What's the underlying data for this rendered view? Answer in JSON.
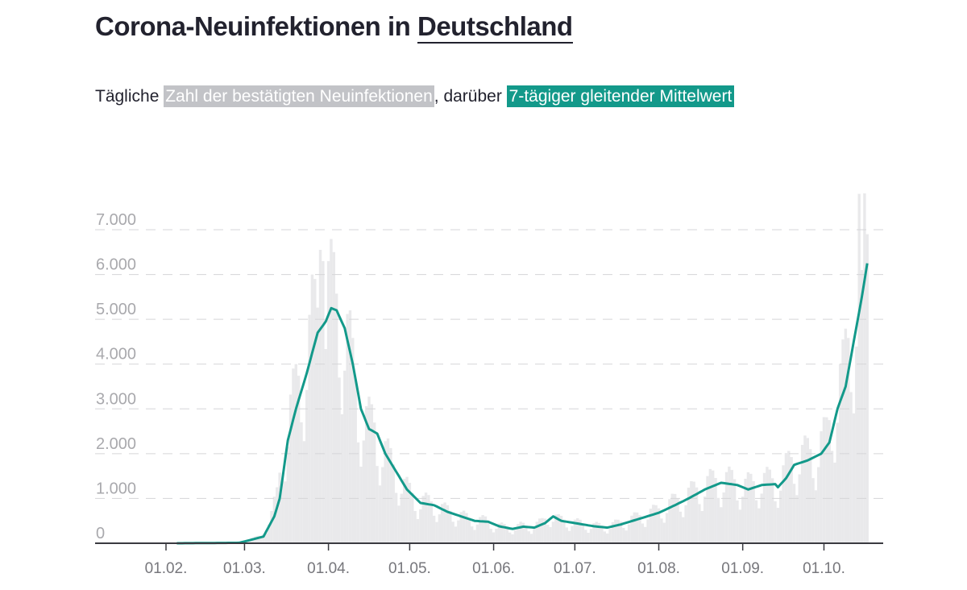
{
  "header": {
    "title_prefix": "Corona-Neuinfektionen in ",
    "title_link": "Deutschland",
    "subtitle_1": "Tägliche ",
    "subtitle_highlight_grey": "Zahl der bestätigten Neuinfektionen",
    "subtitle_2": ", darüber ",
    "subtitle_highlight_green": "7-tägiger gleitender Mittelwert"
  },
  "colors": {
    "bars": "#e9e9eb",
    "line": "#13998a",
    "grid": "#d5d5d8",
    "axis": "#3a3a40"
  },
  "chart_data": {
    "type": "bar+line",
    "title": "Corona-Neuinfektionen in Deutschland",
    "xlabel": "",
    "ylabel": "",
    "ylim": [
      0,
      7800
    ],
    "x_start": "2020-02-01",
    "x_end_day": 260,
    "yticks": [
      {
        "value": 0,
        "label": "0"
      },
      {
        "value": 1000,
        "label": "1.000"
      },
      {
        "value": 2000,
        "label": "2.000"
      },
      {
        "value": 3000,
        "label": "3.000"
      },
      {
        "value": 4000,
        "label": "4.000"
      },
      {
        "value": 5000,
        "label": "5.000"
      },
      {
        "value": 6000,
        "label": "6.000"
      },
      {
        "value": 7000,
        "label": "7.000"
      }
    ],
    "xticks": [
      {
        "day": 0,
        "label": "01.02."
      },
      {
        "day": 29,
        "label": "01.03."
      },
      {
        "day": 60,
        "label": "01.04."
      },
      {
        "day": 90,
        "label": "01.05."
      },
      {
        "day": 121,
        "label": "01.06."
      },
      {
        "day": 151,
        "label": "01.07."
      },
      {
        "day": 182,
        "label": "01.08."
      },
      {
        "day": 213,
        "label": "01.09."
      },
      {
        "day": 243,
        "label": "01.10."
      }
    ],
    "grid": true,
    "series": [
      {
        "name": "7-tägiger gleitender Mittelwert",
        "kind": "line",
        "points_day_value": [
          [
            4,
            0
          ],
          [
            27,
            10
          ],
          [
            31,
            70
          ],
          [
            36,
            150
          ],
          [
            40,
            600
          ],
          [
            42,
            1000
          ],
          [
            45,
            2300
          ],
          [
            48,
            3000
          ],
          [
            52,
            3800
          ],
          [
            56,
            4700
          ],
          [
            59,
            4950
          ],
          [
            61,
            5250
          ],
          [
            63,
            5200
          ],
          [
            66,
            4800
          ],
          [
            69,
            4000
          ],
          [
            72,
            3000
          ],
          [
            75,
            2550
          ],
          [
            78,
            2450
          ],
          [
            81,
            2000
          ],
          [
            85,
            1600
          ],
          [
            89,
            1200
          ],
          [
            94,
            900
          ],
          [
            99,
            850
          ],
          [
            104,
            700
          ],
          [
            109,
            600
          ],
          [
            114,
            500
          ],
          [
            119,
            480
          ],
          [
            123,
            380
          ],
          [
            128,
            320
          ],
          [
            132,
            370
          ],
          [
            136,
            350
          ],
          [
            140,
            450
          ],
          [
            143,
            600
          ],
          [
            146,
            500
          ],
          [
            151,
            450
          ],
          [
            158,
            380
          ],
          [
            163,
            350
          ],
          [
            168,
            420
          ],
          [
            175,
            550
          ],
          [
            182,
            680
          ],
          [
            188,
            850
          ],
          [
            193,
            1000
          ],
          [
            199,
            1200
          ],
          [
            205,
            1350
          ],
          [
            211,
            1300
          ],
          [
            215,
            1200
          ],
          [
            220,
            1300
          ],
          [
            225,
            1320
          ],
          [
            226,
            1250
          ],
          [
            229,
            1450
          ],
          [
            232,
            1750
          ],
          [
            237,
            1850
          ],
          [
            242,
            2000
          ],
          [
            245,
            2250
          ],
          [
            248,
            3000
          ],
          [
            251,
            3500
          ],
          [
            254,
            4500
          ],
          [
            257,
            5500
          ],
          [
            259,
            6250
          ]
        ]
      },
      {
        "name": "Zahl der bestätigten Neuinfektionen",
        "kind": "bar",
        "first_day": 24,
        "last_day": 259,
        "weekday_factors": [
          1.1,
          0.75,
          0.6,
          0.85,
          1.2,
          1.3,
          1.25
        ],
        "peaks_day_value": [
          [
            54,
            6000
          ],
          [
            55,
            5900
          ],
          [
            57,
            6550
          ],
          [
            58,
            6300
          ],
          [
            256,
            7800
          ],
          [
            257,
            6100
          ],
          [
            259,
            6900
          ]
        ]
      }
    ]
  }
}
